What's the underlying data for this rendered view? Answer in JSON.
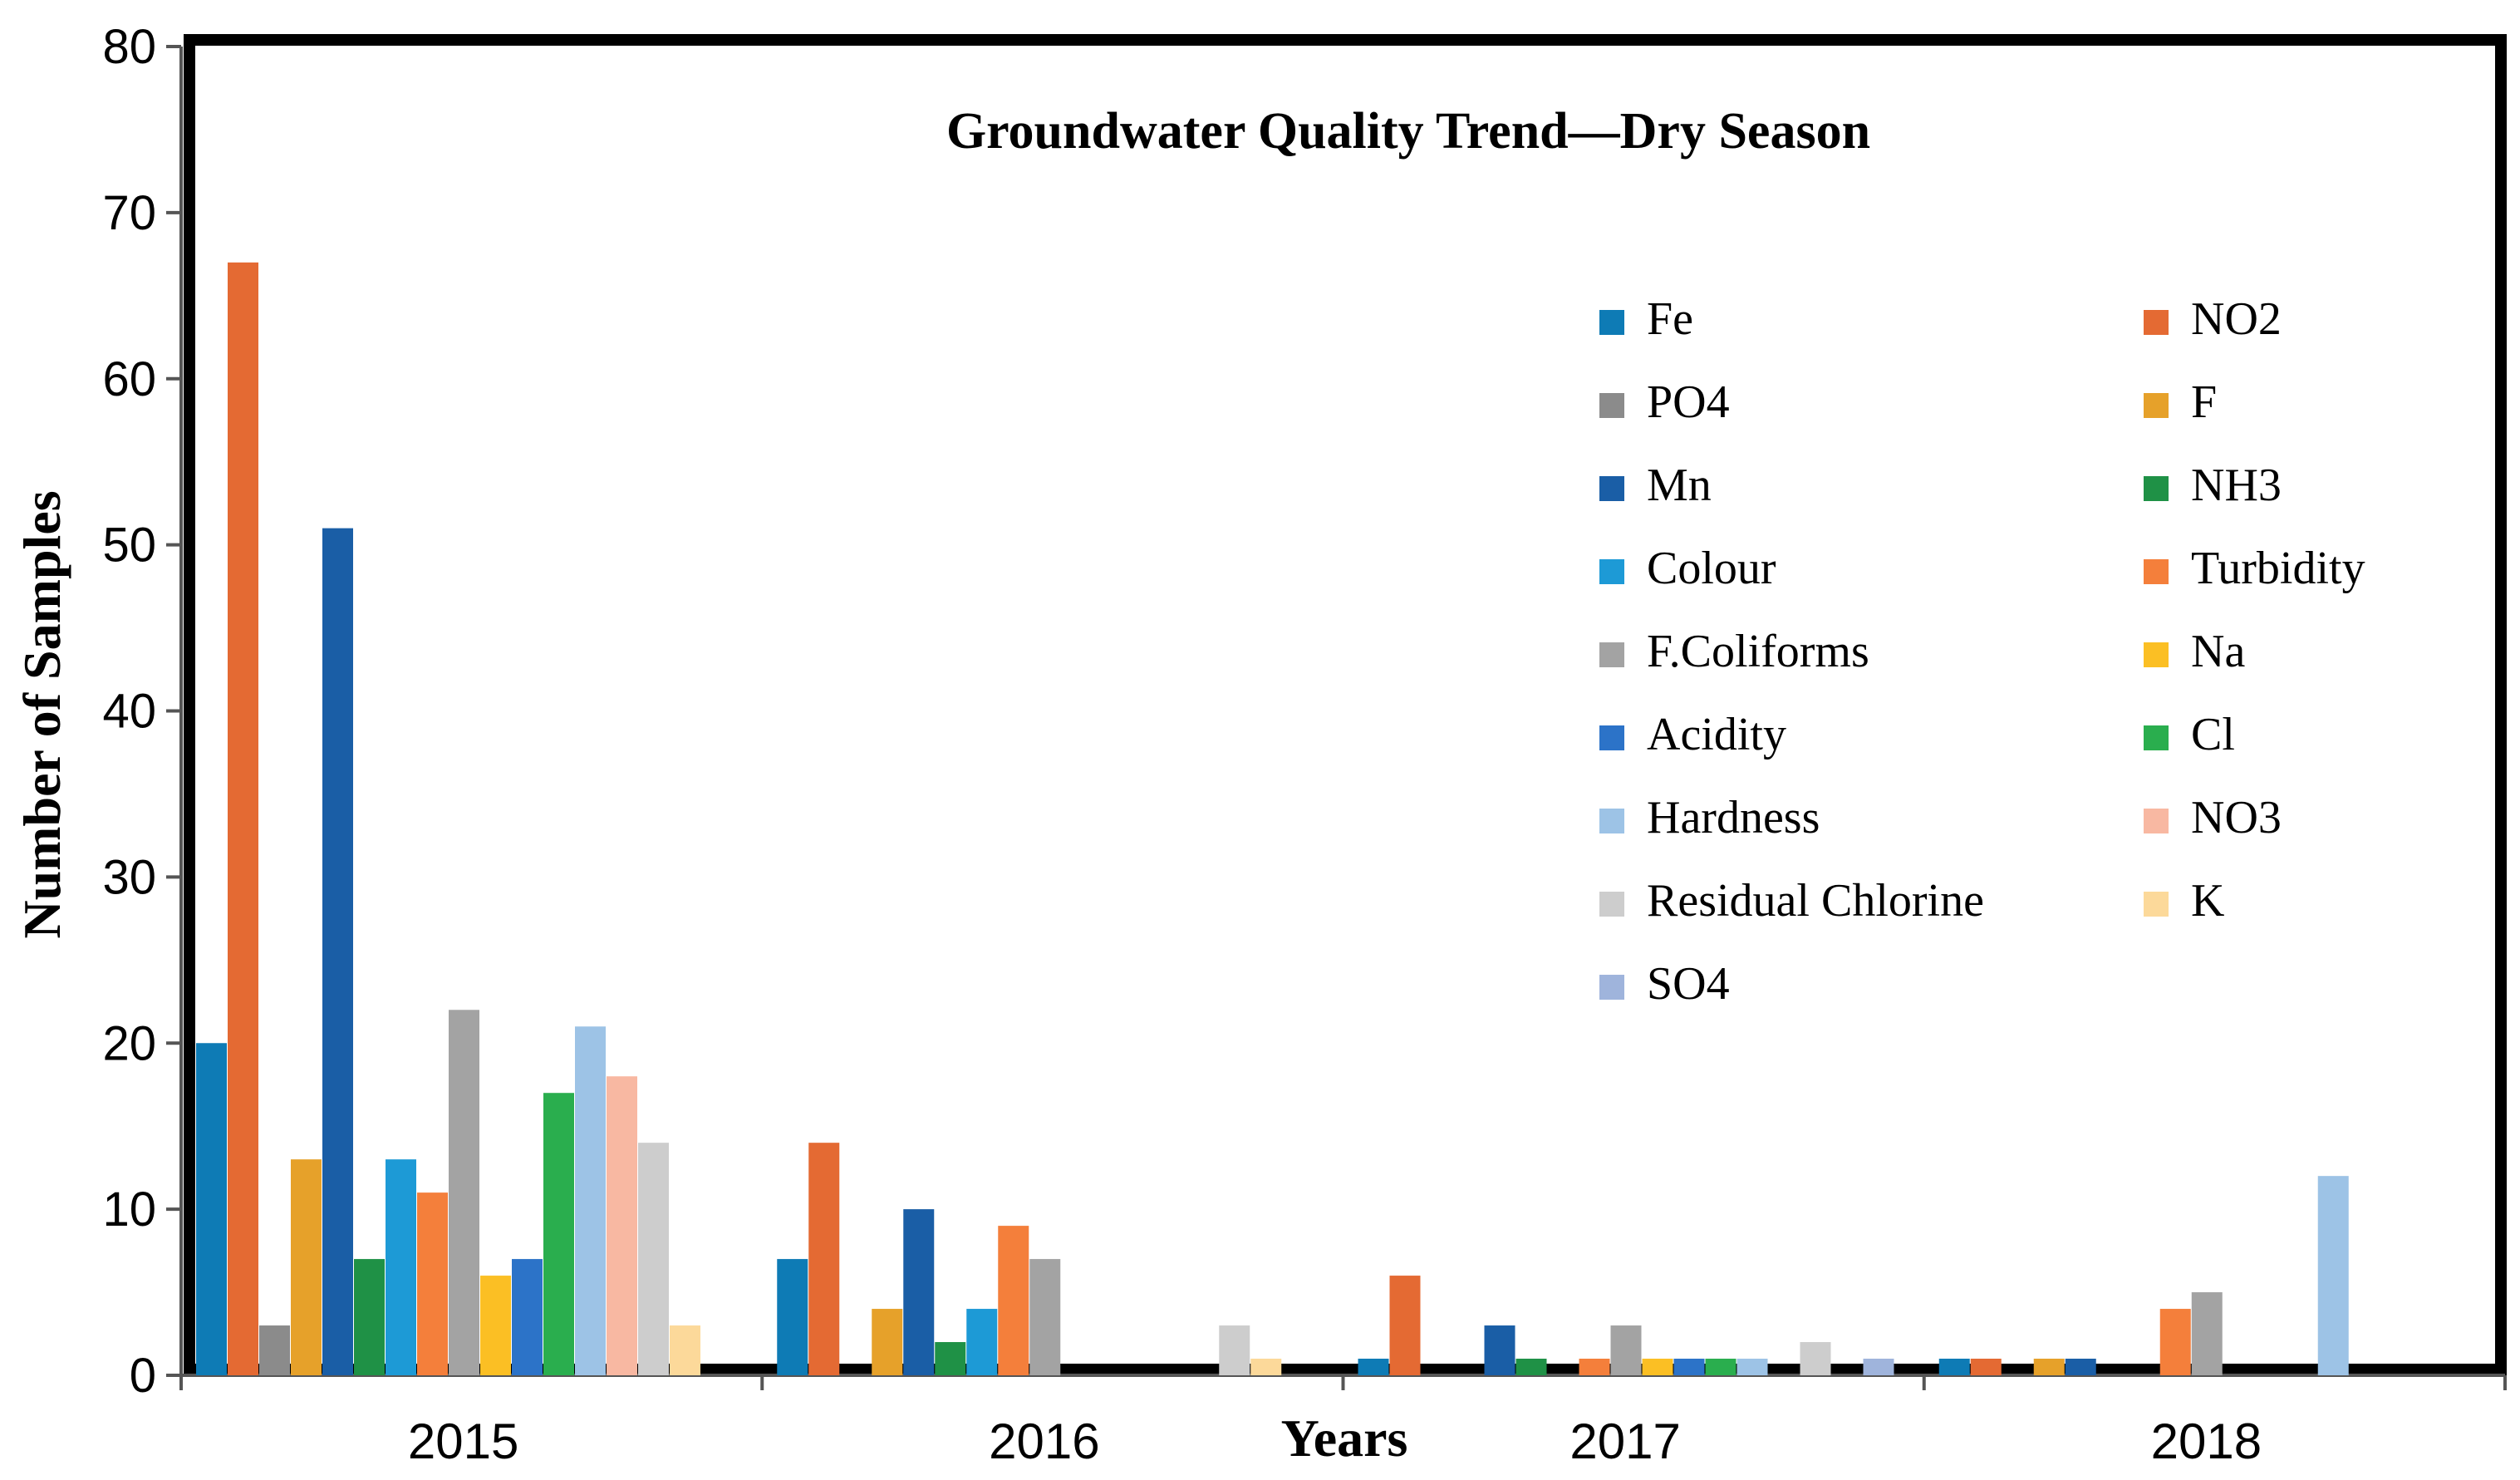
{
  "chart_data": {
    "type": "bar",
    "title": "Groundwater Quality Trend—Dry Season",
    "xlabel": "Years",
    "ylabel": "Number of Samples",
    "ylim": [
      0,
      80
    ],
    "yticks": [
      "0",
      "10",
      "20",
      "30",
      "40",
      "50",
      "60",
      "70",
      "80"
    ],
    "categories": [
      "2015",
      "2016",
      "2017",
      "2018"
    ],
    "legend_position": "right",
    "series": [
      {
        "name": "Fe",
        "color": "#0e7bb5",
        "values": [
          20,
          7,
          1,
          1
        ]
      },
      {
        "name": "NO2",
        "color": "#e46a33",
        "values": [
          67,
          14,
          6,
          1
        ]
      },
      {
        "name": "PO4",
        "color": "#8b8b8b",
        "values": [
          3,
          0,
          0,
          0
        ]
      },
      {
        "name": "F",
        "color": "#e6a12a",
        "values": [
          13,
          4,
          0,
          1
        ]
      },
      {
        "name": "Mn",
        "color": "#1a5ea6",
        "values": [
          51,
          10,
          3,
          1
        ]
      },
      {
        "name": "NH3",
        "color": "#1f9146",
        "values": [
          7,
          2,
          1,
          0
        ]
      },
      {
        "name": "Colour",
        "color": "#1d9ad6",
        "values": [
          13,
          4,
          0,
          0
        ]
      },
      {
        "name": "Turbidity",
        "color": "#f47f3b",
        "values": [
          11,
          9,
          1,
          4
        ]
      },
      {
        "name": "F.Coliforms",
        "color": "#a3a3a3",
        "values": [
          22,
          7,
          3,
          5
        ]
      },
      {
        "name": "Na",
        "color": "#fbbf24",
        "values": [
          6,
          0,
          1,
          0
        ]
      },
      {
        "name": "Acidity",
        "color": "#2c73c8",
        "values": [
          7,
          0,
          1,
          0
        ]
      },
      {
        "name": "Cl",
        "color": "#2aae4e",
        "values": [
          17,
          0,
          1,
          0
        ]
      },
      {
        "name": "Hardness",
        "color": "#9dc3e6",
        "values": [
          21,
          0,
          1,
          12
        ]
      },
      {
        "name": "NO3",
        "color": "#f8b8a2",
        "values": [
          18,
          0,
          0,
          0
        ]
      },
      {
        "name": "Residual Chlorine",
        "color": "#cdcdcd",
        "values": [
          14,
          3,
          2,
          0
        ]
      },
      {
        "name": "K",
        "color": "#fcd99a",
        "values": [
          3,
          1,
          0,
          0
        ]
      },
      {
        "name": "SO4",
        "color": "#9fb4dc",
        "values": [
          0,
          0,
          1,
          0
        ]
      }
    ]
  }
}
